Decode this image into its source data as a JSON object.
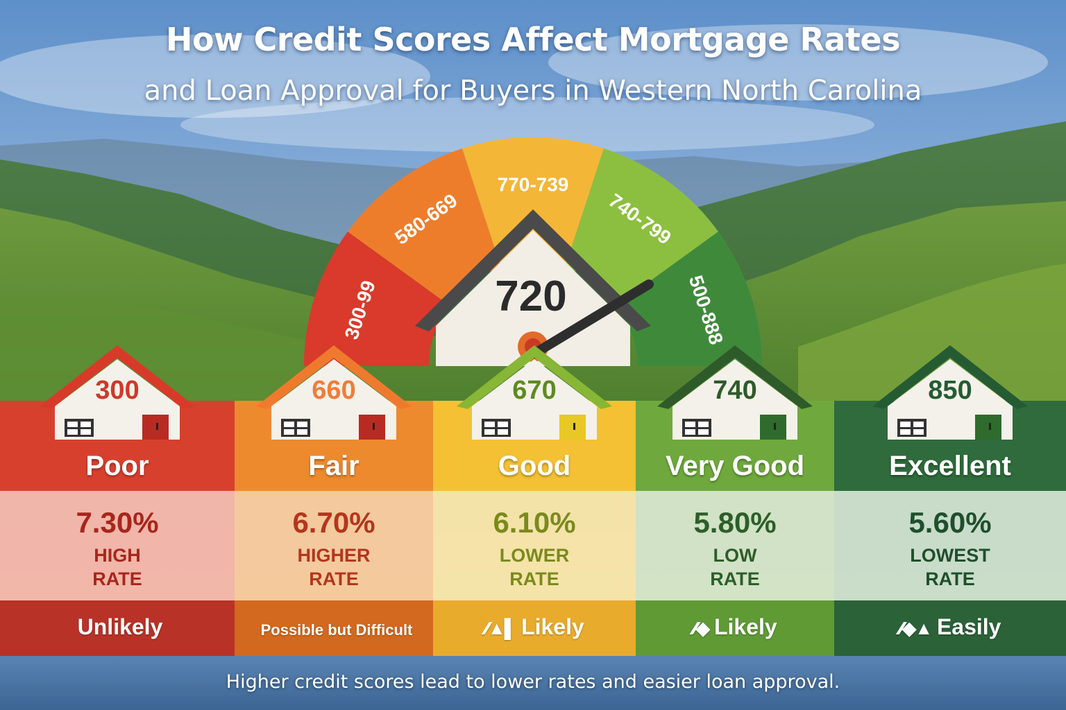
{
  "title": "How Credit Scores Affect Mortgage Rates",
  "subtitle": "and Loan Approval for Buyers in Western North Carolina",
  "gauge": {
    "center_score": "720",
    "segments": [
      {
        "label": "300-99",
        "color": "#d93a2b"
      },
      {
        "label": "580-669",
        "color": "#ee7d2b"
      },
      {
        "label": "770-739",
        "color": "#f4b637"
      },
      {
        "label": "740-799",
        "color": "#8cbf3f"
      },
      {
        "label": "500-888",
        "color": "#3f8a3a"
      }
    ],
    "needle_icon": "gauge-needle-icon"
  },
  "categories": [
    {
      "score": "300",
      "label": "Poor",
      "rate": "7.30%",
      "rate_desc_1": "HIGH",
      "rate_desc_2": "RATE",
      "approval": "Unlikely",
      "approval_icon": "",
      "top_color": "#d8402e",
      "mid_color": "#f4b3a3",
      "bot_color": "#b83227",
      "text_color": "#a8261c",
      "score_color": "#cc3a2a",
      "door_color": "#b82b22",
      "roof_color": "#d83a2a"
    },
    {
      "score": "660",
      "label": "Fair",
      "rate": "6.70%",
      "rate_desc_1": "HIGHER",
      "rate_desc_2": "RATE",
      "approval": "Possible but Difficult",
      "approval_icon": "",
      "top_color": "#ee8a2e",
      "mid_color": "#f7c896",
      "bot_color": "#d2691f",
      "text_color": "#b3361d",
      "score_color": "#ef7d3a",
      "door_color": "#b82b22",
      "roof_color": "#ef7a2e"
    },
    {
      "score": "670",
      "label": "Good",
      "rate": "6.10%",
      "rate_desc_1": "LOWER",
      "rate_desc_2": "RATE",
      "approval": "Likely",
      "approval_icon": "⁄⁄▲▌",
      "top_color": "#f3c133",
      "mid_color": "#f8e4a3",
      "bot_color": "#e9ab2c",
      "text_color": "#7a8a1d",
      "score_color": "#5e8a22",
      "door_color": "#e8c824",
      "roof_color": "#88b635"
    },
    {
      "score": "740",
      "label": "Very Good",
      "rate": "5.80%",
      "rate_desc_1": "LOW",
      "rate_desc_2": "RATE",
      "approval": "Likely",
      "approval_icon": "⁄⁄◆",
      "top_color": "#6fa93d",
      "mid_color": "#d3e3c2",
      "bot_color": "#5f9a35",
      "text_color": "#2d5e2a",
      "score_color": "#2f5a2a",
      "door_color": "#2f6b2d",
      "roof_color": "#2f5a2a"
    },
    {
      "score": "850",
      "label": "Excellent",
      "rate": "5.60%",
      "rate_desc_1": "LOWEST",
      "rate_desc_2": "RATE",
      "approval": "Easily",
      "approval_icon": "⁄⁄◆▲",
      "top_color": "#2f6b3c",
      "mid_color": "#c9dcc6",
      "bot_color": "#2b6238",
      "text_color": "#1f4f2c",
      "score_color": "#255b33",
      "door_color": "#2f6b2d",
      "roof_color": "#255b33"
    }
  ],
  "footer": "Higher credit scores lead to lower rates and easier loan approval."
}
